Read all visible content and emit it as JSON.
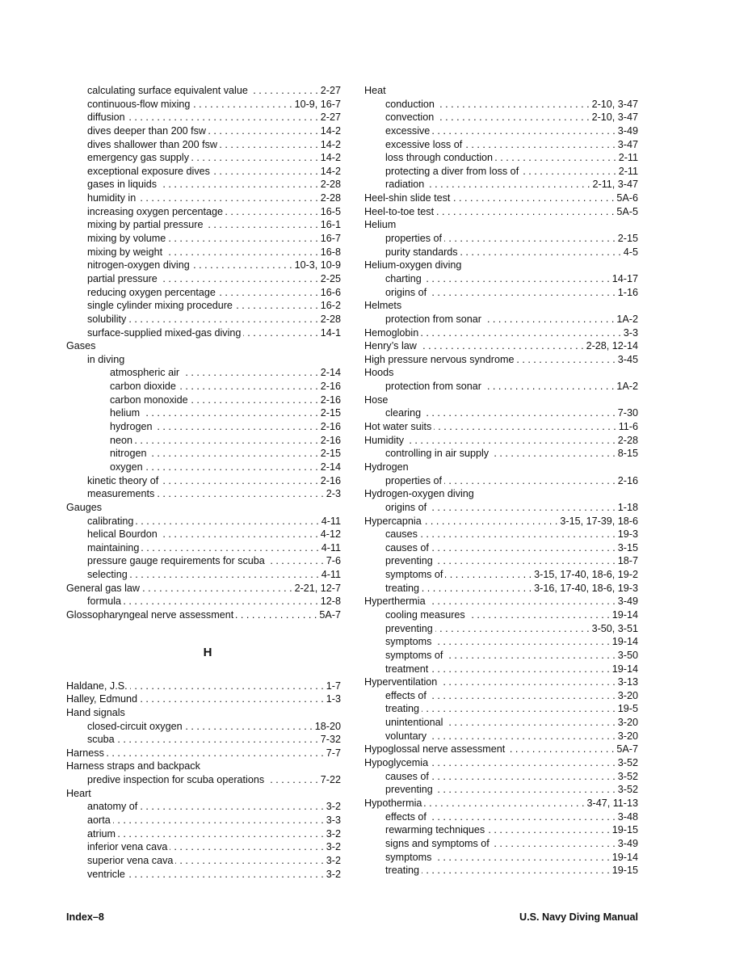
{
  "left": {
    "entries_a": [
      {
        "text": "calculating surface equivalent value",
        "pages": "2-27",
        "level": 1
      },
      {
        "text": "continuous-flow mixing",
        "pages": "10-9, 16-7",
        "level": 1
      },
      {
        "text": "diffusion",
        "pages": "2-27",
        "level": 1
      },
      {
        "text": "dives deeper than 200 fsw",
        "pages": "14-2",
        "level": 1
      },
      {
        "text": "dives shallower than 200 fsw",
        "pages": "14-2",
        "level": 1
      },
      {
        "text": "emergency gas supply",
        "pages": "14-2",
        "level": 1
      },
      {
        "text": "exceptional exposure dives",
        "pages": "14-2",
        "level": 1
      },
      {
        "text": "gases in liquids",
        "pages": "2-28",
        "level": 1
      },
      {
        "text": "humidity in",
        "pages": "2-28",
        "level": 1
      },
      {
        "text": "increasing oxygen percentage",
        "pages": "16-5",
        "level": 1
      },
      {
        "text": "mixing by partial pressure",
        "pages": "16-1",
        "level": 1
      },
      {
        "text": "mixing by volume",
        "pages": "16-7",
        "level": 1
      },
      {
        "text": "mixing by weight",
        "pages": "16-8",
        "level": 1
      },
      {
        "text": "nitrogen-oxygen diving",
        "pages": "10-3, 10-9",
        "level": 1
      },
      {
        "text": "partial pressure",
        "pages": "2-25",
        "level": 1
      },
      {
        "text": "reducing oxygen percentage",
        "pages": "16-6",
        "level": 1
      },
      {
        "text": "single cylinder mixing procedure",
        "pages": "16-2",
        "level": 1
      },
      {
        "text": "solubility",
        "pages": "2-28",
        "level": 1
      },
      {
        "text": "surface-supplied mixed-gas diving",
        "pages": "14-1",
        "level": 1
      },
      {
        "text": "Gases",
        "pages": "",
        "level": 0
      },
      {
        "text": "in diving",
        "pages": "",
        "level": 1
      },
      {
        "text": "atmospheric air",
        "pages": "2-14",
        "level": 2
      },
      {
        "text": "carbon dioxide",
        "pages": "2-16",
        "level": 2
      },
      {
        "text": "carbon monoxide",
        "pages": "2-16",
        "level": 2
      },
      {
        "text": "helium",
        "pages": "2-15",
        "level": 2
      },
      {
        "text": "hydrogen",
        "pages": "2-16",
        "level": 2
      },
      {
        "text": "neon",
        "pages": "2-16",
        "level": 2
      },
      {
        "text": "nitrogen",
        "pages": "2-15",
        "level": 2
      },
      {
        "text": "oxygen",
        "pages": "2-14",
        "level": 2
      },
      {
        "text": "kinetic theory of",
        "pages": "2-16",
        "level": 1
      },
      {
        "text": "measurements",
        "pages": "2-3",
        "level": 1
      },
      {
        "text": "Gauges",
        "pages": "",
        "level": 0
      },
      {
        "text": "calibrating",
        "pages": "4-11",
        "level": 1
      },
      {
        "text": "helical Bourdon",
        "pages": "4-12",
        "level": 1
      },
      {
        "text": "maintaining",
        "pages": "4-11",
        "level": 1
      },
      {
        "text": "pressure gauge requirements for scuba",
        "pages": "7-6",
        "level": 1
      },
      {
        "text": "selecting",
        "pages": "4-11",
        "level": 1
      },
      {
        "text": "General gas law",
        "pages": "2-21, 12-7",
        "level": 0
      },
      {
        "text": "formula",
        "pages": "12-8",
        "level": 1
      },
      {
        "text": "Glossopharyngeal nerve assessment",
        "pages": "5A-7",
        "level": 0
      }
    ],
    "heading": "H",
    "entries_b": [
      {
        "text": "Haldane, J.S.",
        "pages": "1-7",
        "level": 0
      },
      {
        "text": "Halley, Edmund",
        "pages": "1-3",
        "level": 0
      },
      {
        "text": "Hand signals",
        "pages": "",
        "level": 0
      },
      {
        "text": "closed-circuit oxygen",
        "pages": "18-20",
        "level": 1
      },
      {
        "text": "scuba",
        "pages": "7-32",
        "level": 1
      },
      {
        "text": "Harness",
        "pages": "7-7",
        "level": 0
      },
      {
        "text": "Harness straps and backpack",
        "pages": "",
        "level": 0
      },
      {
        "text": "predive inspection for scuba operations",
        "pages": "7-22",
        "level": 1
      },
      {
        "text": "Heart",
        "pages": "",
        "level": 0
      },
      {
        "text": "anatomy of",
        "pages": "3-2",
        "level": 1
      },
      {
        "text": "aorta",
        "pages": "3-3",
        "level": 1
      },
      {
        "text": "atrium",
        "pages": "3-2",
        "level": 1
      },
      {
        "text": "inferior vena cava",
        "pages": "3-2",
        "level": 1
      },
      {
        "text": "superior vena cava",
        "pages": "3-2",
        "level": 1
      },
      {
        "text": "ventricle",
        "pages": "3-2",
        "level": 1
      }
    ]
  },
  "right": {
    "entries": [
      {
        "text": "Heat",
        "pages": "",
        "level": 0
      },
      {
        "text": "conduction",
        "pages": "2-10, 3-47",
        "level": 1
      },
      {
        "text": "convection",
        "pages": "2-10, 3-47",
        "level": 1
      },
      {
        "text": "excessive",
        "pages": "3-49",
        "level": 1
      },
      {
        "text": "excessive loss of",
        "pages": "3-47",
        "level": 1
      },
      {
        "text": "loss through conduction",
        "pages": "2-11",
        "level": 1
      },
      {
        "text": "protecting a diver from loss of",
        "pages": "2-11",
        "level": 1
      },
      {
        "text": "radiation",
        "pages": "2-11, 3-47",
        "level": 1
      },
      {
        "text": "Heel-shin slide test",
        "pages": "5A-6",
        "level": 0
      },
      {
        "text": "Heel-to-toe test",
        "pages": "5A-5",
        "level": 0
      },
      {
        "text": "Helium",
        "pages": "",
        "level": 0
      },
      {
        "text": "properties of",
        "pages": "2-15",
        "level": 1
      },
      {
        "text": "purity standards",
        "pages": "4-5",
        "level": 1
      },
      {
        "text": "Helium-oxygen diving",
        "pages": "",
        "level": 0
      },
      {
        "text": "charting",
        "pages": "14-17",
        "level": 1
      },
      {
        "text": "origins of",
        "pages": "1-16",
        "level": 1
      },
      {
        "text": "Helmets",
        "pages": "",
        "level": 0
      },
      {
        "text": "protection from sonar",
        "pages": "1A-2",
        "level": 1
      },
      {
        "text": "Hemoglobin",
        "pages": "3-3",
        "level": 0
      },
      {
        "text": "Henry’s law",
        "pages": "2-28, 12-14",
        "level": 0
      },
      {
        "text": "High pressure nervous syndrome",
        "pages": "3-45",
        "level": 0
      },
      {
        "text": "Hoods",
        "pages": "",
        "level": 0
      },
      {
        "text": "protection from sonar",
        "pages": "1A-2",
        "level": 1
      },
      {
        "text": "Hose",
        "pages": "",
        "level": 0
      },
      {
        "text": "clearing",
        "pages": "7-30",
        "level": 1
      },
      {
        "text": "Hot water suits",
        "pages": "11-6",
        "level": 0
      },
      {
        "text": "Humidity",
        "pages": "2-28",
        "level": 0
      },
      {
        "text": "controlling in air supply",
        "pages": "8-15",
        "level": 1
      },
      {
        "text": "Hydrogen",
        "pages": "",
        "level": 0
      },
      {
        "text": "properties of",
        "pages": "2-16",
        "level": 1
      },
      {
        "text": "Hydrogen-oxygen diving",
        "pages": "",
        "level": 0
      },
      {
        "text": "origins of",
        "pages": "1-18",
        "level": 1
      },
      {
        "text": "Hypercapnia",
        "pages": "3-15, 17-39, 18-6",
        "level": 0
      },
      {
        "text": "causes",
        "pages": "19-3",
        "level": 1
      },
      {
        "text": "causes of",
        "pages": "3-15",
        "level": 1
      },
      {
        "text": "preventing",
        "pages": "18-7",
        "level": 1
      },
      {
        "text": "symptoms of",
        "pages": "3-15, 17-40, 18-6, 19-2",
        "level": 1
      },
      {
        "text": "treating",
        "pages": "3-16, 17-40, 18-6, 19-3",
        "level": 1
      },
      {
        "text": "Hyperthermia",
        "pages": "3-49",
        "level": 0
      },
      {
        "text": "cooling measures",
        "pages": "19-14",
        "level": 1
      },
      {
        "text": "preventing",
        "pages": "3-50, 3-51",
        "level": 1
      },
      {
        "text": "symptoms",
        "pages": "19-14",
        "level": 1
      },
      {
        "text": "symptoms of",
        "pages": "3-50",
        "level": 1
      },
      {
        "text": "treatment",
        "pages": "19-14",
        "level": 1
      },
      {
        "text": "Hyperventilation",
        "pages": "3-13",
        "level": 0
      },
      {
        "text": "effects of",
        "pages": "3-20",
        "level": 1
      },
      {
        "text": "treating",
        "pages": "19-5",
        "level": 1
      },
      {
        "text": "unintentional",
        "pages": "3-20",
        "level": 1
      },
      {
        "text": "voluntary",
        "pages": "3-20",
        "level": 1
      },
      {
        "text": "Hypoglossal nerve assessment",
        "pages": "5A-7",
        "level": 0
      },
      {
        "text": "Hypoglycemia",
        "pages": "3-52",
        "level": 0
      },
      {
        "text": "causes of",
        "pages": "3-52",
        "level": 1
      },
      {
        "text": "preventing",
        "pages": "3-52",
        "level": 1
      },
      {
        "text": "Hypothermia",
        "pages": "3-47, 11-13",
        "level": 0
      },
      {
        "text": "effects of",
        "pages": "3-48",
        "level": 1
      },
      {
        "text": "rewarming techniques",
        "pages": "19-15",
        "level": 1
      },
      {
        "text": "signs and symptoms of",
        "pages": "3-49",
        "level": 1
      },
      {
        "text": "symptoms",
        "pages": "19-14",
        "level": 1
      },
      {
        "text": "treating",
        "pages": "19-15",
        "level": 1
      }
    ]
  },
  "footer": {
    "page_label": "Index–8",
    "manual_title": "U.S. Navy Diving Manual"
  }
}
